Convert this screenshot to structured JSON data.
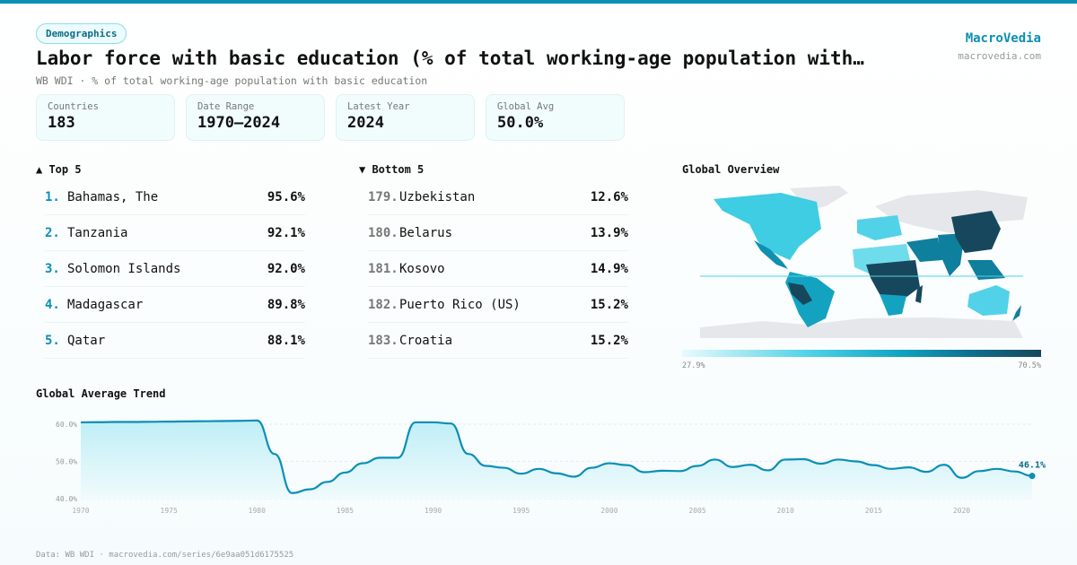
{
  "header": {
    "badge": "Demographics",
    "title": "Labor force with basic education (% of total working-age population with…",
    "subtitle": "WB WDI · % of total working-age population with basic education",
    "brand": "MacroVedia",
    "site": "macrovedia.com"
  },
  "stats": [
    {
      "label": "Countries",
      "value": "183"
    },
    {
      "label": "Date Range",
      "value": "1970–2024"
    },
    {
      "label": "Latest Year",
      "value": "2024"
    },
    {
      "label": "Global Avg",
      "value": "50.0%"
    }
  ],
  "top5": {
    "title": "▲ Top 5",
    "items": [
      {
        "rank": "1.",
        "name": "Bahamas, The",
        "value": "95.6%"
      },
      {
        "rank": "2.",
        "name": "Tanzania",
        "value": "92.1%"
      },
      {
        "rank": "3.",
        "name": "Solomon Islands",
        "value": "92.0%"
      },
      {
        "rank": "4.",
        "name": "Madagascar",
        "value": "89.8%"
      },
      {
        "rank": "5.",
        "name": "Qatar",
        "value": "88.1%"
      }
    ]
  },
  "bottom5": {
    "title": "▼ Bottom 5",
    "items": [
      {
        "rank": "179.",
        "name": "Uzbekistan",
        "value": "12.6%"
      },
      {
        "rank": "180.",
        "name": "Belarus",
        "value": "13.9%"
      },
      {
        "rank": "181.",
        "name": "Kosovo",
        "value": "14.9%"
      },
      {
        "rank": "182.",
        "name": "Puerto Rico (US)",
        "value": "15.2%"
      },
      {
        "rank": "183.",
        "name": "Croatia",
        "value": "15.2%"
      }
    ]
  },
  "map": {
    "title": "Global Overview",
    "legend_min": "27.9%",
    "legend_max": "70.5%",
    "colors": {
      "low": "#e9fafc",
      "mid": "#10a6c4",
      "high": "#17475c",
      "nodata": "#e5e7ea"
    }
  },
  "chart_data": {
    "type": "area",
    "title": "Global Average Trend",
    "x": [
      1970,
      1971,
      1972,
      1973,
      1974,
      1975,
      1976,
      1977,
      1978,
      1979,
      1980,
      1981,
      1982,
      1983,
      1984,
      1985,
      1986,
      1987,
      1988,
      1989,
      1990,
      1991,
      1992,
      1993,
      1994,
      1995,
      1996,
      1997,
      1998,
      1999,
      2000,
      2001,
      2002,
      2003,
      2004,
      2005,
      2006,
      2007,
      2008,
      2009,
      2010,
      2011,
      2012,
      2013,
      2014,
      2015,
      2016,
      2017,
      2018,
      2019,
      2020,
      2021,
      2022,
      2023,
      2024
    ],
    "values": [
      60.5,
      60.55,
      60.6,
      60.6,
      60.65,
      60.7,
      60.75,
      60.8,
      60.85,
      60.9,
      61.0,
      52,
      41.5,
      42.5,
      44.5,
      47,
      49.5,
      51,
      51,
      60.5,
      60.5,
      60.2,
      52,
      48.8,
      48.3,
      46.7,
      48.0,
      46.8,
      45.9,
      48.3,
      49.5,
      49.0,
      47.1,
      47.5,
      47.4,
      48.8,
      50.5,
      48.5,
      49.1,
      47.6,
      50.5,
      50.6,
      49.4,
      50.5,
      50.0,
      49.0,
      48.0,
      48.4,
      47.2,
      49.1,
      45.6,
      47.4,
      48.0,
      47.3,
      46.1
    ],
    "yticks": [
      "40.0%",
      "50.0%",
      "60.0%"
    ],
    "ytick_values": [
      40,
      50,
      60
    ],
    "xticks": [
      1970,
      1975,
      1980,
      1985,
      1990,
      1995,
      2000,
      2005,
      2010,
      2015,
      2020
    ],
    "ylim": [
      40,
      61
    ],
    "last_label": "46.1%",
    "color": "#0a8fb5",
    "grid": true
  },
  "footer": "Data: WB WDI · macrovedia.com/series/6e9aa051d6175525"
}
